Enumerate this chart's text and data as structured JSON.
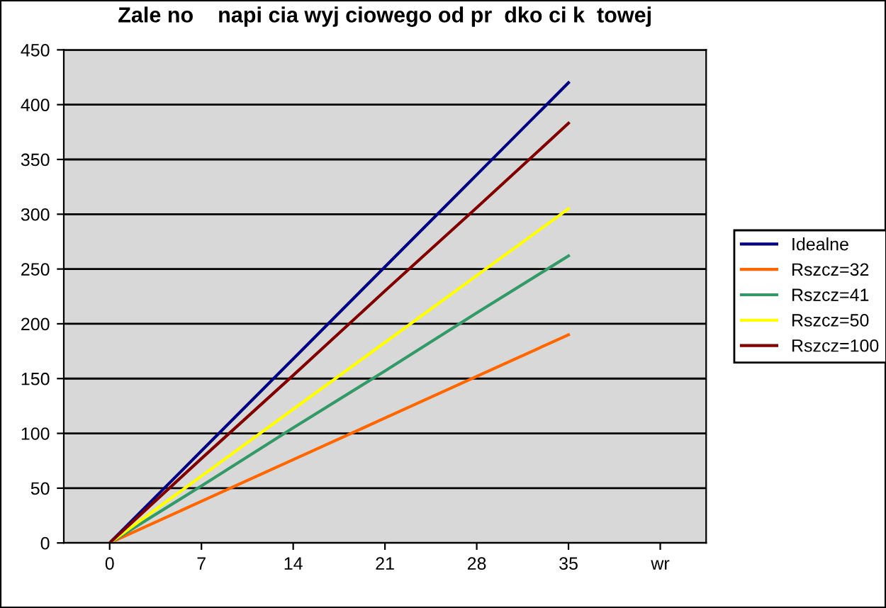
{
  "chart_data": {
    "type": "line",
    "title": "Zale no    napi cia wyj ciowego od pr  dko ci k  towej",
    "categories": [
      "0",
      "7",
      "14",
      "21",
      "28",
      "35",
      "wr"
    ],
    "series": [
      {
        "name": "Idealne",
        "color": "#000080",
        "values": [
          0,
          84,
          168,
          252,
          336,
          420,
          null
        ]
      },
      {
        "name": "Rszcz=32",
        "color": "#ff6600",
        "values": [
          0,
          38,
          76,
          114,
          152,
          190,
          null
        ]
      },
      {
        "name": "Rszcz=41",
        "color": "#339966",
        "values": [
          0,
          52,
          105,
          157,
          210,
          262,
          null
        ]
      },
      {
        "name": "Rszcz=50",
        "color": "#ffff00",
        "values": [
          0,
          61,
          122,
          183,
          244,
          305,
          null
        ]
      },
      {
        "name": "Rszcz=100",
        "color": "#800000",
        "values": [
          0,
          77,
          153,
          230,
          306,
          383,
          null
        ]
      }
    ],
    "ylim": [
      0,
      450
    ],
    "yticks": [
      0,
      50,
      100,
      150,
      200,
      250,
      300,
      350,
      400,
      450
    ],
    "grid": "y",
    "legend": "right",
    "marker": "none",
    "line_style": "solid"
  }
}
